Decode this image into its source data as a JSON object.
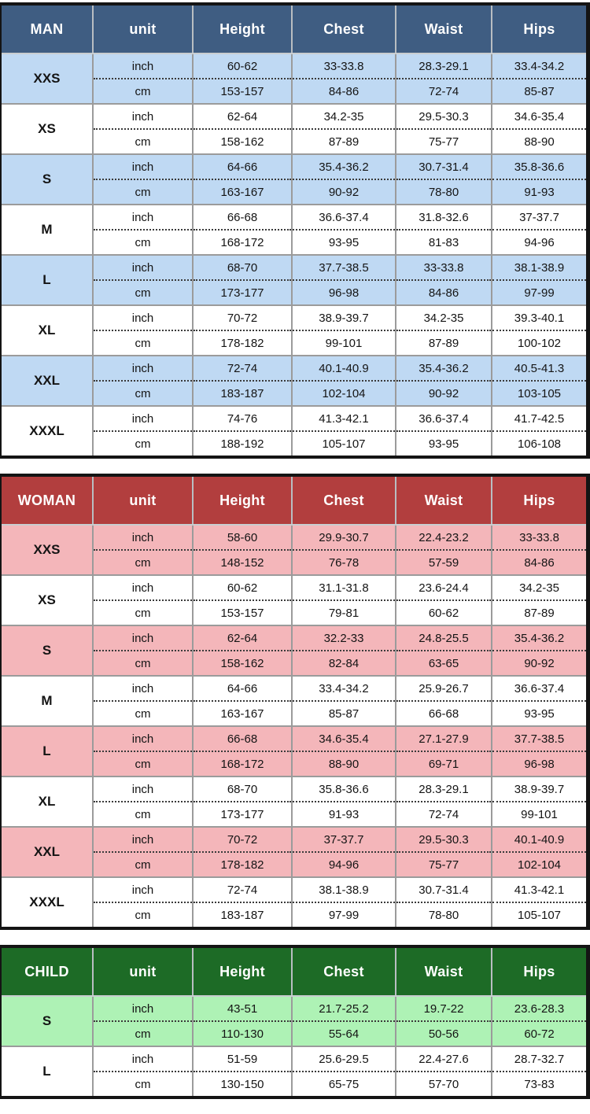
{
  "page": {
    "background": "#ffffff"
  },
  "theme": {
    "frame_border": "#141414",
    "grid_line": "#9b9b9b"
  },
  "tables": [
    {
      "id": "man",
      "label": "MAN",
      "header_bg": "#3f5d82",
      "row_tint": "#bfd9f3",
      "columns": [
        "unit",
        "Height",
        "Chest",
        "Waist",
        "Hips"
      ],
      "sizes": [
        {
          "size": "XXS",
          "rows": [
            {
              "unit": "inch",
              "values": [
                "60-62",
                "33-33.8",
                "28.3-29.1",
                "33.4-34.2"
              ]
            },
            {
              "unit": "cm",
              "values": [
                "153-157",
                "84-86",
                "72-74",
                "85-87"
              ]
            }
          ]
        },
        {
          "size": "XS",
          "rows": [
            {
              "unit": "inch",
              "values": [
                "62-64",
                "34.2-35",
                "29.5-30.3",
                "34.6-35.4"
              ]
            },
            {
              "unit": "cm",
              "values": [
                "158-162",
                "87-89",
                "75-77",
                "88-90"
              ]
            }
          ]
        },
        {
          "size": "S",
          "rows": [
            {
              "unit": "inch",
              "values": [
                "64-66",
                "35.4-36.2",
                "30.7-31.4",
                "35.8-36.6"
              ]
            },
            {
              "unit": "cm",
              "values": [
                "163-167",
                "90-92",
                "78-80",
                "91-93"
              ]
            }
          ]
        },
        {
          "size": "M",
          "rows": [
            {
              "unit": "inch",
              "values": [
                "66-68",
                "36.6-37.4",
                "31.8-32.6",
                "37-37.7"
              ]
            },
            {
              "unit": "cm",
              "values": [
                "168-172",
                "93-95",
                "81-83",
                "94-96"
              ]
            }
          ]
        },
        {
          "size": "L",
          "rows": [
            {
              "unit": "inch",
              "values": [
                "68-70",
                "37.7-38.5",
                "33-33.8",
                "38.1-38.9"
              ]
            },
            {
              "unit": "cm",
              "values": [
                "173-177",
                "96-98",
                "84-86",
                "97-99"
              ]
            }
          ]
        },
        {
          "size": "XL",
          "rows": [
            {
              "unit": "inch",
              "values": [
                "70-72",
                "38.9-39.7",
                "34.2-35",
                "39.3-40.1"
              ]
            },
            {
              "unit": "cm",
              "values": [
                "178-182",
                "99-101",
                "87-89",
                "100-102"
              ]
            }
          ]
        },
        {
          "size": "XXL",
          "rows": [
            {
              "unit": "inch",
              "values": [
                "72-74",
                "40.1-40.9",
                "35.4-36.2",
                "40.5-41.3"
              ]
            },
            {
              "unit": "cm",
              "values": [
                "183-187",
                "102-104",
                "90-92",
                "103-105"
              ]
            }
          ]
        },
        {
          "size": "XXXL",
          "rows": [
            {
              "unit": "inch",
              "values": [
                "74-76",
                "41.3-42.1",
                "36.6-37.4",
                "41.7-42.5"
              ]
            },
            {
              "unit": "cm",
              "values": [
                "188-192",
                "105-107",
                "93-95",
                "106-108"
              ]
            }
          ]
        }
      ]
    },
    {
      "id": "woman",
      "label": "WOMAN",
      "header_bg": "#b23e3e",
      "row_tint": "#f4b6ba",
      "columns": [
        "unit",
        "Height",
        "Chest",
        "Waist",
        "Hips"
      ],
      "sizes": [
        {
          "size": "XXS",
          "rows": [
            {
              "unit": "inch",
              "values": [
                "58-60",
                "29.9-30.7",
                "22.4-23.2",
                "33-33.8"
              ]
            },
            {
              "unit": "cm",
              "values": [
                "148-152",
                "76-78",
                "57-59",
                "84-86"
              ]
            }
          ]
        },
        {
          "size": "XS",
          "rows": [
            {
              "unit": "inch",
              "values": [
                "60-62",
                "31.1-31.8",
                "23.6-24.4",
                "34.2-35"
              ]
            },
            {
              "unit": "cm",
              "values": [
                "153-157",
                "79-81",
                "60-62",
                "87-89"
              ]
            }
          ]
        },
        {
          "size": "S",
          "rows": [
            {
              "unit": "inch",
              "values": [
                "62-64",
                "32.2-33",
                "24.8-25.5",
                "35.4-36.2"
              ]
            },
            {
              "unit": "cm",
              "values": [
                "158-162",
                "82-84",
                "63-65",
                "90-92"
              ]
            }
          ]
        },
        {
          "size": "M",
          "rows": [
            {
              "unit": "inch",
              "values": [
                "64-66",
                "33.4-34.2",
                "25.9-26.7",
                "36.6-37.4"
              ]
            },
            {
              "unit": "cm",
              "values": [
                "163-167",
                "85-87",
                "66-68",
                "93-95"
              ]
            }
          ]
        },
        {
          "size": "L",
          "rows": [
            {
              "unit": "inch",
              "values": [
                "66-68",
                "34.6-35.4",
                "27.1-27.9",
                "37.7-38.5"
              ]
            },
            {
              "unit": "cm",
              "values": [
                "168-172",
                "88-90",
                "69-71",
                "96-98"
              ]
            }
          ]
        },
        {
          "size": "XL",
          "rows": [
            {
              "unit": "inch",
              "values": [
                "68-70",
                "35.8-36.6",
                "28.3-29.1",
                "38.9-39.7"
              ]
            },
            {
              "unit": "cm",
              "values": [
                "173-177",
                "91-93",
                "72-74",
                "99-101"
              ]
            }
          ]
        },
        {
          "size": "XXL",
          "rows": [
            {
              "unit": "inch",
              "values": [
                "70-72",
                "37-37.7",
                "29.5-30.3",
                "40.1-40.9"
              ]
            },
            {
              "unit": "cm",
              "values": [
                "178-182",
                "94-96",
                "75-77",
                "102-104"
              ]
            }
          ]
        },
        {
          "size": "XXXL",
          "rows": [
            {
              "unit": "inch",
              "values": [
                "72-74",
                "38.1-38.9",
                "30.7-31.4",
                "41.3-42.1"
              ]
            },
            {
              "unit": "cm",
              "values": [
                "183-187",
                "97-99",
                "78-80",
                "105-107"
              ]
            }
          ]
        }
      ]
    },
    {
      "id": "child",
      "label": "CHILD",
      "header_bg": "#1d6b26",
      "row_tint": "#aef2b5",
      "columns": [
        "unit",
        "Height",
        "Chest",
        "Waist",
        "Hips"
      ],
      "sizes": [
        {
          "size": "S",
          "rows": [
            {
              "unit": "inch",
              "values": [
                "43-51",
                "21.7-25.2",
                "19.7-22",
                "23.6-28.3"
              ]
            },
            {
              "unit": "cm",
              "values": [
                "110-130",
                "55-64",
                "50-56",
                "60-72"
              ]
            }
          ]
        },
        {
          "size": "L",
          "rows": [
            {
              "unit": "inch",
              "values": [
                "51-59",
                "25.6-29.5",
                "22.4-27.6",
                "28.7-32.7"
              ]
            },
            {
              "unit": "cm",
              "values": [
                "130-150",
                "65-75",
                "57-70",
                "73-83"
              ]
            }
          ]
        }
      ]
    }
  ]
}
